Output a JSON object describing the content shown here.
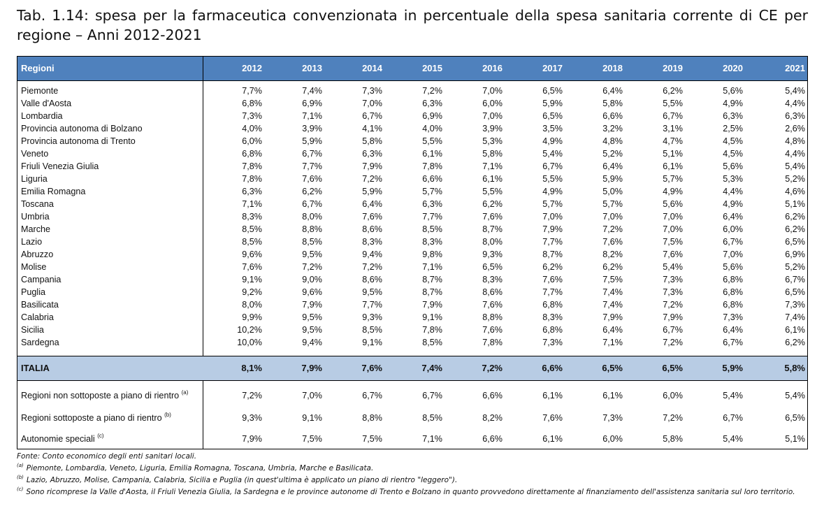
{
  "title": "Tab. 1.14: spesa per la farmaceutica convenzionata in percentuale della spesa sanitaria corrente di CE per regione – Anni 2012-2021",
  "table": {
    "region_header": "Regioni",
    "years": [
      "2012",
      "2013",
      "2014",
      "2015",
      "2016",
      "2017",
      "2018",
      "2019",
      "2020",
      "2021"
    ],
    "rows": [
      {
        "region": "Piemonte",
        "values": [
          "7,7%",
          "7,4%",
          "7,3%",
          "7,2%",
          "7,0%",
          "6,5%",
          "6,4%",
          "6,2%",
          "5,6%",
          "5,4%"
        ]
      },
      {
        "region": "Valle d'Aosta",
        "values": [
          "6,8%",
          "6,9%",
          "7,0%",
          "6,3%",
          "6,0%",
          "5,9%",
          "5,8%",
          "5,5%",
          "4,9%",
          "4,4%"
        ]
      },
      {
        "region": "Lombardia",
        "values": [
          "7,3%",
          "7,1%",
          "6,7%",
          "6,9%",
          "7,0%",
          "6,5%",
          "6,6%",
          "6,7%",
          "6,3%",
          "6,3%"
        ]
      },
      {
        "region": "Provincia autonoma di Bolzano",
        "values": [
          "4,0%",
          "3,9%",
          "4,1%",
          "4,0%",
          "3,9%",
          "3,5%",
          "3,2%",
          "3,1%",
          "2,5%",
          "2,6%"
        ]
      },
      {
        "region": "Provincia autonoma di Trento",
        "values": [
          "6,0%",
          "5,9%",
          "5,8%",
          "5,5%",
          "5,3%",
          "4,9%",
          "4,8%",
          "4,7%",
          "4,5%",
          "4,8%"
        ]
      },
      {
        "region": "Veneto",
        "values": [
          "6,8%",
          "6,7%",
          "6,3%",
          "6,1%",
          "5,8%",
          "5,4%",
          "5,2%",
          "5,1%",
          "4,5%",
          "4,4%"
        ]
      },
      {
        "region": "Friuli Venezia Giulia",
        "values": [
          "7,8%",
          "7,7%",
          "7,9%",
          "7,8%",
          "7,1%",
          "6,7%",
          "6,4%",
          "6,1%",
          "5,6%",
          "5,4%"
        ]
      },
      {
        "region": "Liguria",
        "values": [
          "7,8%",
          "7,6%",
          "7,2%",
          "6,6%",
          "6,1%",
          "5,5%",
          "5,9%",
          "5,7%",
          "5,3%",
          "5,2%"
        ]
      },
      {
        "region": "Emilia Romagna",
        "values": [
          "6,3%",
          "6,2%",
          "5,9%",
          "5,7%",
          "5,5%",
          "4,9%",
          "5,0%",
          "4,9%",
          "4,4%",
          "4,6%"
        ]
      },
      {
        "region": "Toscana",
        "values": [
          "7,1%",
          "6,7%",
          "6,4%",
          "6,3%",
          "6,2%",
          "5,7%",
          "5,7%",
          "5,6%",
          "4,9%",
          "5,1%"
        ]
      },
      {
        "region": "Umbria",
        "values": [
          "8,3%",
          "8,0%",
          "7,6%",
          "7,7%",
          "7,6%",
          "7,0%",
          "7,0%",
          "7,0%",
          "6,4%",
          "6,2%"
        ]
      },
      {
        "region": "Marche",
        "values": [
          "8,5%",
          "8,8%",
          "8,6%",
          "8,5%",
          "8,7%",
          "7,9%",
          "7,2%",
          "7,0%",
          "6,0%",
          "6,2%"
        ]
      },
      {
        "region": "Lazio",
        "values": [
          "8,5%",
          "8,5%",
          "8,3%",
          "8,3%",
          "8,0%",
          "7,7%",
          "7,6%",
          "7,5%",
          "6,7%",
          "6,5%"
        ]
      },
      {
        "region": "Abruzzo",
        "values": [
          "9,6%",
          "9,5%",
          "9,4%",
          "9,8%",
          "9,3%",
          "8,7%",
          "8,2%",
          "7,6%",
          "7,0%",
          "6,9%"
        ]
      },
      {
        "region": "Molise",
        "values": [
          "7,6%",
          "7,2%",
          "7,2%",
          "7,1%",
          "6,5%",
          "6,2%",
          "6,2%",
          "5,4%",
          "5,6%",
          "5,2%"
        ]
      },
      {
        "region": "Campania",
        "values": [
          "9,1%",
          "9,0%",
          "8,6%",
          "8,7%",
          "8,3%",
          "7,6%",
          "7,5%",
          "7,3%",
          "6,8%",
          "6,7%"
        ]
      },
      {
        "region": "Puglia",
        "values": [
          "9,2%",
          "9,6%",
          "9,5%",
          "8,7%",
          "8,6%",
          "7,7%",
          "7,4%",
          "7,3%",
          "6,8%",
          "6,5%"
        ]
      },
      {
        "region": "Basilicata",
        "values": [
          "8,0%",
          "7,9%",
          "7,7%",
          "7,9%",
          "7,6%",
          "6,8%",
          "7,4%",
          "7,2%",
          "6,8%",
          "7,3%"
        ]
      },
      {
        "region": "Calabria",
        "values": [
          "9,9%",
          "9,5%",
          "9,3%",
          "9,1%",
          "8,8%",
          "8,3%",
          "7,9%",
          "7,9%",
          "7,3%",
          "7,4%"
        ]
      },
      {
        "region": "Sicilia",
        "values": [
          "10,2%",
          "9,5%",
          "8,5%",
          "7,8%",
          "7,6%",
          "6,8%",
          "6,4%",
          "6,7%",
          "6,4%",
          "6,1%"
        ]
      },
      {
        "region": "Sardegna",
        "values": [
          "10,0%",
          "9,4%",
          "9,1%",
          "8,5%",
          "7,8%",
          "7,3%",
          "7,1%",
          "7,2%",
          "6,7%",
          "6,2%"
        ]
      }
    ],
    "italia": {
      "region": "ITALIA",
      "values": [
        "8,1%",
        "7,9%",
        "7,6%",
        "7,4%",
        "7,2%",
        "6,6%",
        "6,5%",
        "6,5%",
        "5,9%",
        "5,8%"
      ]
    },
    "groups": [
      {
        "label": "Regioni non sottoposte a piano di rientro",
        "note": "(a)",
        "values": [
          "7,2%",
          "7,0%",
          "6,7%",
          "6,7%",
          "6,6%",
          "6,1%",
          "6,1%",
          "6,0%",
          "5,4%",
          "5,4%"
        ]
      },
      {
        "label": "Regioni sottoposte a piano di rientro",
        "note": "(b)",
        "values": [
          "9,3%",
          "9,1%",
          "8,8%",
          "8,5%",
          "8,2%",
          "7,6%",
          "7,3%",
          "7,2%",
          "6,7%",
          "6,5%"
        ]
      },
      {
        "label": "Autonomie speciali",
        "note": "(c)",
        "values": [
          "7,9%",
          "7,5%",
          "7,5%",
          "7,1%",
          "6,6%",
          "6,1%",
          "6,0%",
          "5,8%",
          "5,4%",
          "5,1%"
        ]
      }
    ]
  },
  "notes": {
    "source": "Fonte: Conto economico degli enti sanitari locali.",
    "items": [
      {
        "mark": "(a)",
        "text": "Piemonte, Lombardia, Veneto, Liguria, Emilia Romagna, Toscana, Umbria, Marche e Basilicata."
      },
      {
        "mark": "(b)",
        "text": "Lazio, Abruzzo, Molise, Campania, Calabria, Sicilia e Puglia (in quest'ultima è applicato un piano di rientro \"leggero\")."
      },
      {
        "mark": "(c)",
        "text": "Sono ricomprese la Valle d'Aosta, il Friuli Venezia Giulia, la Sardegna e le province autonome di Trento e Bolzano in quanto provvedono direttamente al finanziamento dell'assistenza sanitaria sul loro territorio."
      }
    ]
  }
}
